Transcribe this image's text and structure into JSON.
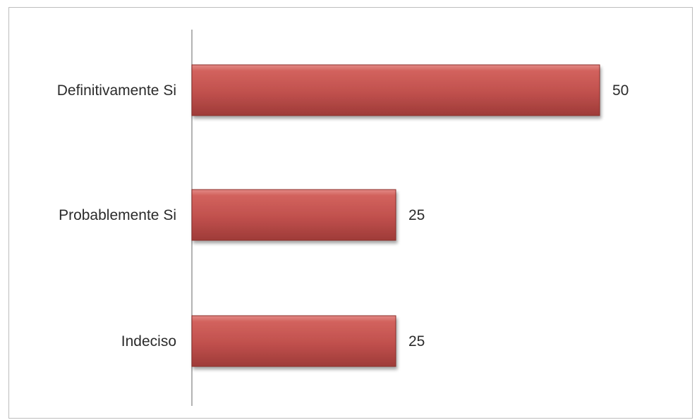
{
  "chart_data": {
    "type": "bar",
    "orientation": "horizontal",
    "categories": [
      "Definitivamente Si",
      "Probablemente Si",
      "Indeciso"
    ],
    "values": [
      50,
      25,
      25
    ],
    "xlim": [
      0,
      50
    ],
    "grid": false,
    "legend": "none",
    "bar_color": "#c0504d"
  }
}
